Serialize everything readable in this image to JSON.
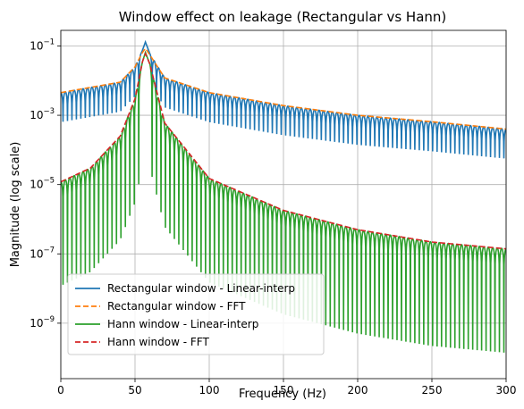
{
  "chart_data": {
    "type": "line",
    "title": "Window effect on leakage (Rectangular vs Hann)",
    "xlabel": "Frequency (Hz)",
    "ylabel": "Magnitude (log scale)",
    "xlim": [
      0,
      300
    ],
    "ylim_log10": [
      -10.6,
      -0.55
    ],
    "yscale": "log",
    "grid": true,
    "legend_position": "lower-left",
    "x_ticks": [
      0,
      50,
      100,
      150,
      200,
      250,
      300
    ],
    "x_tick_labels": [
      "0",
      "50",
      "100",
      "150",
      "200",
      "250",
      "300"
    ],
    "y_ticks_log10": [
      -1,
      -3,
      -5,
      -7,
      -9
    ],
    "y_tick_labels": [
      {
        "base": "10",
        "exp": "−1"
      },
      {
        "base": "10",
        "exp": "−3"
      },
      {
        "base": "10",
        "exp": "−5"
      },
      {
        "base": "10",
        "exp": "−7"
      },
      {
        "base": "10",
        "exp": "−9"
      }
    ],
    "signal_peak_hz": 57,
    "series": [
      {
        "name": "Rectangular window - Linear-interp",
        "color": "#1f77b4",
        "dash": "solid",
        "envelope": {
          "x": [
            0,
            40,
            50,
            55,
            57,
            60,
            70,
            100,
            150,
            200,
            250,
            300
          ],
          "y": [
            0.0045,
            0.009,
            0.025,
            0.075,
            0.13,
            0.06,
            0.012,
            0.0045,
            0.0019,
            0.001,
            0.00065,
            0.0004
          ]
        },
        "null_depth_ratio": 0.14,
        "ripple_period_hz": 3
      },
      {
        "name": "Rectangular window - FFT",
        "color": "#ff7f0e",
        "dash": "dashed",
        "envelope": {
          "x": [
            0,
            40,
            50,
            55,
            57,
            60,
            70,
            100,
            150,
            200,
            250,
            300
          ],
          "y": [
            0.0045,
            0.009,
            0.025,
            0.065,
            0.085,
            0.055,
            0.012,
            0.0045,
            0.0019,
            0.001,
            0.00065,
            0.0004
          ]
        },
        "null_depth_ratio": 1.0,
        "ripple_period_hz": 0
      },
      {
        "name": "Hann window - Linear-interp",
        "color": "#2ca02c",
        "dash": "solid",
        "envelope": {
          "x": [
            0,
            20,
            40,
            50,
            55,
            57,
            60,
            70,
            100,
            150,
            200,
            250,
            300
          ],
          "y": [
            1.2e-05,
            3e-05,
            0.00025,
            0.003,
            0.035,
            0.065,
            0.03,
            0.0006,
            1.5e-05,
            1.8e-06,
            5e-07,
            2.2e-07,
            1.4e-07
          ]
        },
        "null_depth_ratio": 0.001,
        "ripple_period_hz": 3
      },
      {
        "name": "Hann window - FFT",
        "color": "#d62728",
        "dash": "dashed",
        "envelope": {
          "x": [
            0,
            20,
            40,
            50,
            55,
            57,
            60,
            70,
            100,
            150,
            200,
            250,
            300
          ],
          "y": [
            1.2e-05,
            3e-05,
            0.00025,
            0.003,
            0.035,
            0.06,
            0.03,
            0.0006,
            1.5e-05,
            1.8e-06,
            5e-07,
            2.2e-07,
            1.4e-07
          ]
        },
        "null_depth_ratio": 1.0,
        "ripple_period_hz": 0
      }
    ]
  }
}
